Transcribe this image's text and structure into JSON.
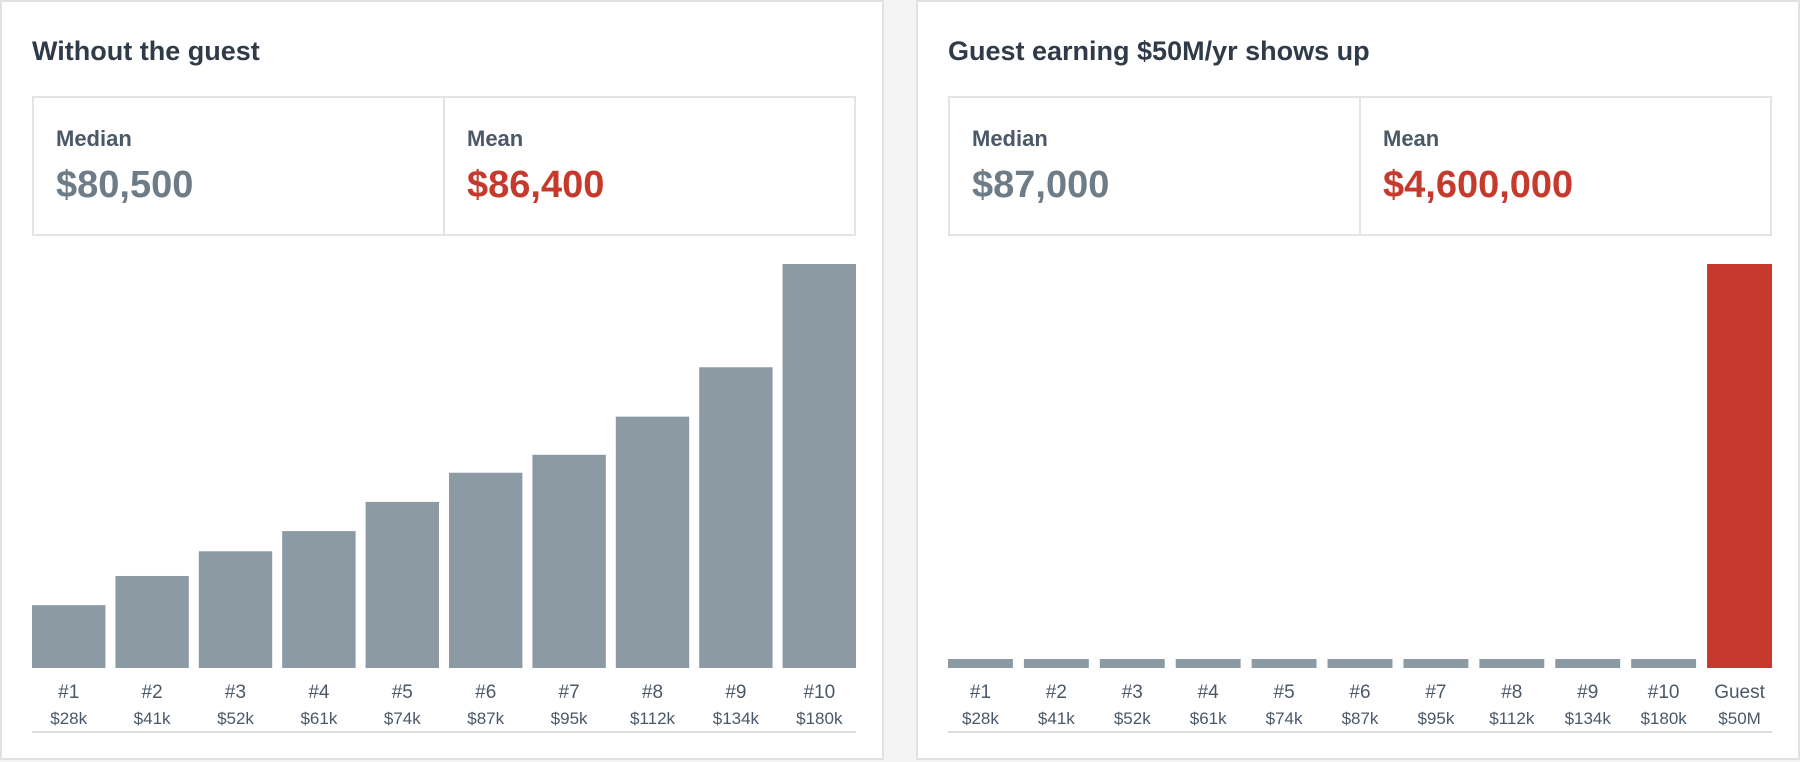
{
  "colors": {
    "bar": "#8c9ba3",
    "highlight": "#c53a2c",
    "axis": "#d0d0d0"
  },
  "panels": [
    {
      "title": "Without the guest",
      "stats": {
        "median_label": "Median",
        "median_value": "$80,500",
        "mean_label": "Mean",
        "mean_value": "$86,400"
      }
    },
    {
      "title": "Guest earning $50M/yr shows up",
      "stats": {
        "median_label": "Median",
        "median_value": "$87,000",
        "mean_label": "Mean",
        "mean_value": "$4,600,000"
      }
    }
  ],
  "chart_data": [
    {
      "type": "bar",
      "title": "Without the guest",
      "categories": [
        "#1",
        "#2",
        "#3",
        "#4",
        "#5",
        "#6",
        "#7",
        "#8",
        "#9",
        "#10"
      ],
      "sub_labels": [
        "$28k",
        "$41k",
        "$52k",
        "$61k",
        "$74k",
        "$87k",
        "$95k",
        "$112k",
        "$134k",
        "$180k"
      ],
      "values": [
        28000,
        41000,
        52000,
        61000,
        74000,
        87000,
        95000,
        112000,
        134000,
        180000
      ],
      "ylim": [
        0,
        180000
      ],
      "grid": false,
      "xlabel": "",
      "ylabel": ""
    },
    {
      "type": "bar",
      "title": "Guest earning $50M/yr shows up",
      "categories": [
        "#1",
        "#2",
        "#3",
        "#4",
        "#5",
        "#6",
        "#7",
        "#8",
        "#9",
        "#10",
        "Guest"
      ],
      "sub_labels": [
        "$28k",
        "$41k",
        "$52k",
        "$61k",
        "$74k",
        "$87k",
        "$95k",
        "$112k",
        "$134k",
        "$180k",
        "$50M"
      ],
      "values": [
        28000,
        41000,
        52000,
        61000,
        74000,
        87000,
        95000,
        112000,
        134000,
        180000,
        50000000
      ],
      "highlight_index": 10,
      "ylim": [
        0,
        50000000
      ],
      "grid": false,
      "xlabel": "",
      "ylabel": ""
    }
  ]
}
